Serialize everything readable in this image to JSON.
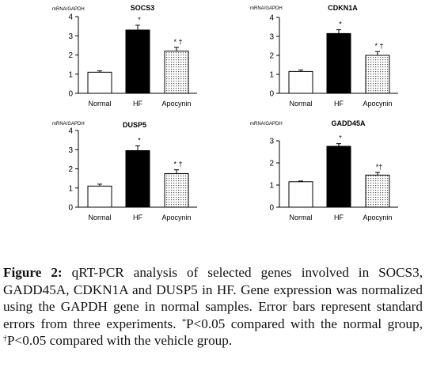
{
  "chart_data": [
    {
      "type": "bar",
      "title": "SOCS3",
      "ylabel": "mRNA/GAPDH",
      "ylim": [
        0,
        4
      ],
      "yticks": [
        "0",
        "1",
        "2",
        "3",
        "4"
      ],
      "categories": [
        "Normal",
        "HF",
        "Apocynin"
      ],
      "values": [
        1.1,
        3.3,
        2.2
      ],
      "errors": [
        0.07,
        0.25,
        0.2
      ],
      "annotations": [
        "",
        "*",
        "* †"
      ],
      "fills": [
        "white",
        "black",
        "dots"
      ]
    },
    {
      "type": "bar",
      "title": "CDKN1A",
      "ylabel": "mRNA/GAPDH",
      "ylim": [
        0,
        4
      ],
      "yticks": [
        "0",
        "1",
        "2",
        "3",
        "4"
      ],
      "categories": [
        "Normal",
        "HF",
        "Apocynin"
      ],
      "values": [
        1.15,
        3.15,
        2.0
      ],
      "errors": [
        0.08,
        0.2,
        0.2
      ],
      "annotations": [
        "",
        "*",
        "* †"
      ],
      "fills": [
        "white",
        "black",
        "dots"
      ]
    },
    {
      "type": "bar",
      "title": "DUSP5",
      "ylabel": "mRNA/GAPDH",
      "ylim": [
        0,
        4
      ],
      "yticks": [
        "0",
        "1",
        "2",
        "3",
        "4"
      ],
      "categories": [
        "Normal",
        "HF",
        "Apocynin"
      ],
      "values": [
        1.1,
        2.95,
        1.75
      ],
      "errors": [
        0.1,
        0.25,
        0.2
      ],
      "annotations": [
        "",
        "*",
        "* †"
      ],
      "fills": [
        "white",
        "black",
        "dots"
      ]
    },
    {
      "type": "bar",
      "title": "GADD45A",
      "ylabel": "mRNA/GAPDH",
      "ylim": [
        0,
        3
      ],
      "yticks": [
        "0",
        "1",
        "2",
        "3"
      ],
      "categories": [
        "Normal",
        "HF",
        "Apocynin"
      ],
      "values": [
        1.15,
        2.75,
        1.45
      ],
      "errors": [
        0.03,
        0.12,
        0.12
      ],
      "annotations": [
        "",
        "*",
        "*†"
      ],
      "fills": [
        "white",
        "black",
        "dots"
      ]
    }
  ],
  "caption": {
    "label": "Figure 2:",
    "text1": " qRT-PCR analysis of selected genes involved in SOCS3, GADD45A, CDKN1A and DUSP5 in HF. Gene expression was normalized using the GAPDH gene in normal samples. Error bars represent standard errors from three experiments. ",
    "sup1": "*",
    "text2": "P<0.05 compared with the normal group, ",
    "sup2": "†",
    "text3": "P<0.05 compared with the vehicle group."
  }
}
